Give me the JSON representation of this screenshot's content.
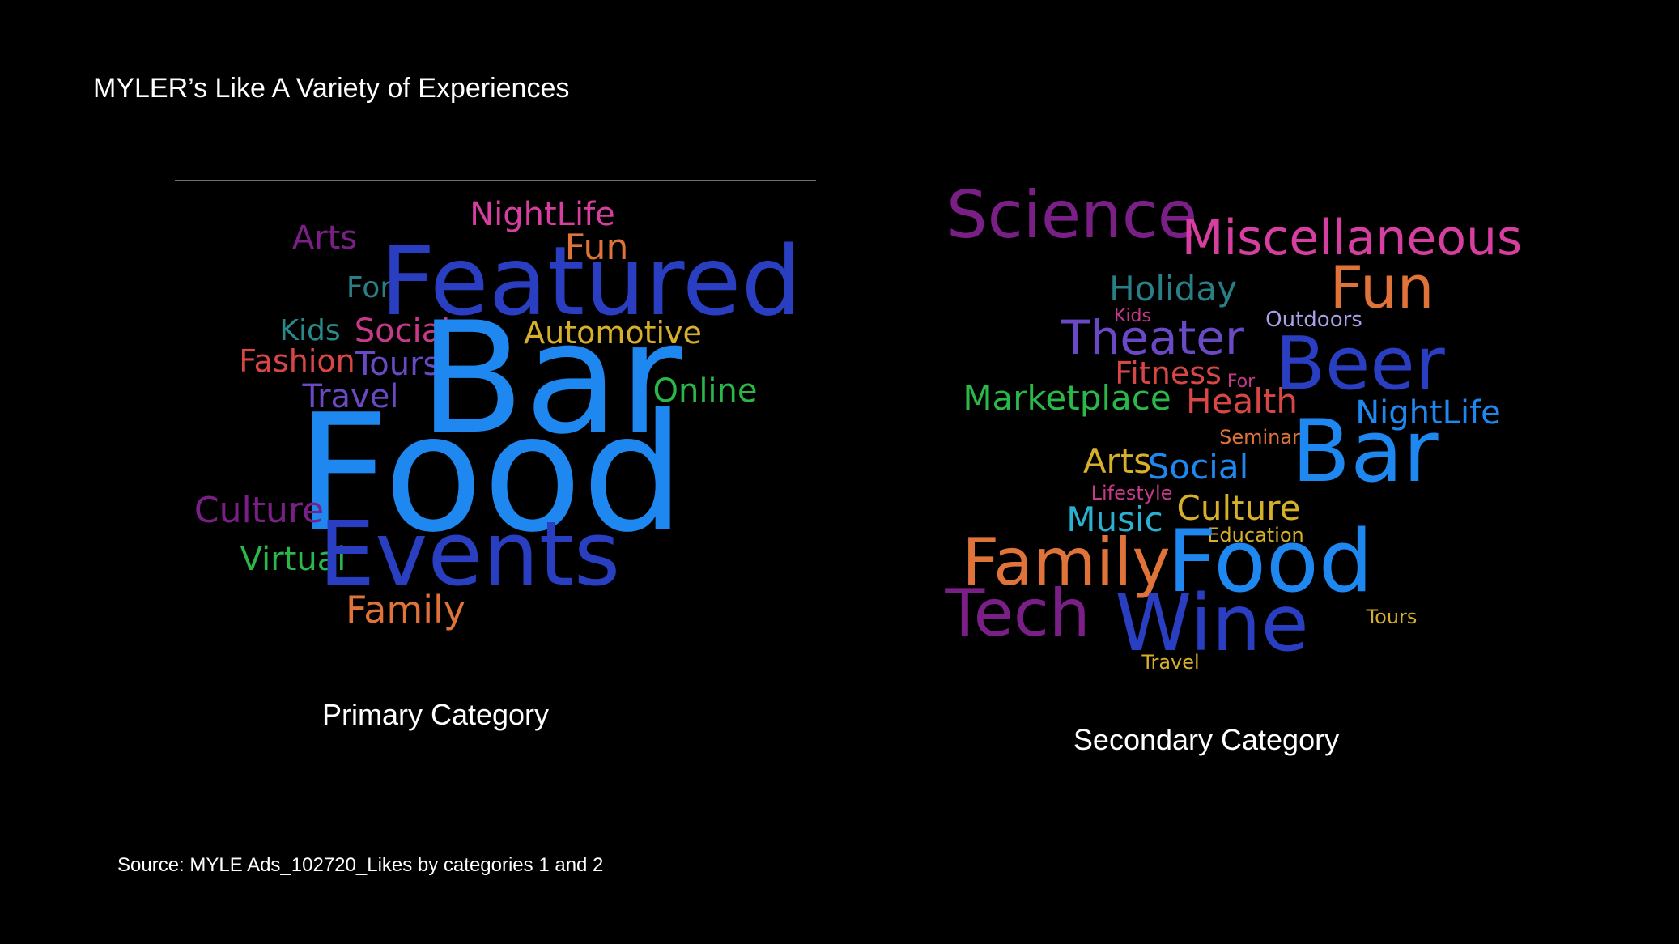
{
  "title": "MYLER’s Like A Variety of Experiences",
  "source": "Source: MYLE Ads_102720_Likes by categories 1 and 2",
  "primary": {
    "caption": "Primary Category",
    "words": [
      {
        "text": "NightLife",
        "color": "#d63fa0"
      },
      {
        "text": "Arts",
        "color": "#7a1f86"
      },
      {
        "text": "Fun",
        "color": "#e0733a"
      },
      {
        "text": "For",
        "color": "#2a7f86"
      },
      {
        "text": "Featured",
        "color": "#2a3ec2"
      },
      {
        "text": "Kids",
        "color": "#2a8a8a"
      },
      {
        "text": "Social",
        "color": "#c63a8a"
      },
      {
        "text": "Automotive",
        "color": "#d6b02a"
      },
      {
        "text": "Fashion",
        "color": "#d94646"
      },
      {
        "text": "Tours",
        "color": "#6a4ac4"
      },
      {
        "text": "Bar",
        "color": "#1e88f0"
      },
      {
        "text": "Online",
        "color": "#2bb84a"
      },
      {
        "text": "Travel",
        "color": "#6a4ac4"
      },
      {
        "text": "Food",
        "color": "#1e88f0"
      },
      {
        "text": "Culture",
        "color": "#7a1f86"
      },
      {
        "text": "Virtual",
        "color": "#2bb84a"
      },
      {
        "text": "Events",
        "color": "#2a3ec2"
      },
      {
        "text": "Family",
        "color": "#e0733a"
      }
    ]
  },
  "secondary": {
    "caption": "Secondary Category",
    "words": [
      {
        "text": "Science",
        "color": "#7a1f86"
      },
      {
        "text": "Miscellaneous",
        "color": "#d63fa0"
      },
      {
        "text": "Holiday",
        "color": "#2a7f86"
      },
      {
        "text": "Fun",
        "color": "#e0733a"
      },
      {
        "text": "Kids",
        "color": "#c63a8a"
      },
      {
        "text": "Outdoors",
        "color": "#a9a0e8"
      },
      {
        "text": "Theater",
        "color": "#6a4ac4"
      },
      {
        "text": "Beer",
        "color": "#2a3ec2"
      },
      {
        "text": "Fitness",
        "color": "#d94646"
      },
      {
        "text": "For",
        "color": "#c63a8a"
      },
      {
        "text": "Marketplace",
        "color": "#2bb84a"
      },
      {
        "text": "Health",
        "color": "#d94646"
      },
      {
        "text": "NightLife",
        "color": "#1e88f0"
      },
      {
        "text": "Seminar",
        "color": "#e0733a"
      },
      {
        "text": "Bar",
        "color": "#1e88f0"
      },
      {
        "text": "Arts",
        "color": "#d6b02a"
      },
      {
        "text": "Social",
        "color": "#1e88f0"
      },
      {
        "text": "Lifestyle",
        "color": "#c63a8a"
      },
      {
        "text": "Culture",
        "color": "#d6b02a"
      },
      {
        "text": "Music",
        "color": "#2ab0d0"
      },
      {
        "text": "Education",
        "color": "#d6b02a"
      },
      {
        "text": "Family",
        "color": "#e0733a"
      },
      {
        "text": "Food",
        "color": "#1e88f0"
      },
      {
        "text": "Tech",
        "color": "#7a1f86"
      },
      {
        "text": "Wine",
        "color": "#2a3ec2"
      },
      {
        "text": "Tours",
        "color": "#d6b02a"
      },
      {
        "text": "Travel",
        "color": "#d6b02a"
      }
    ]
  }
}
